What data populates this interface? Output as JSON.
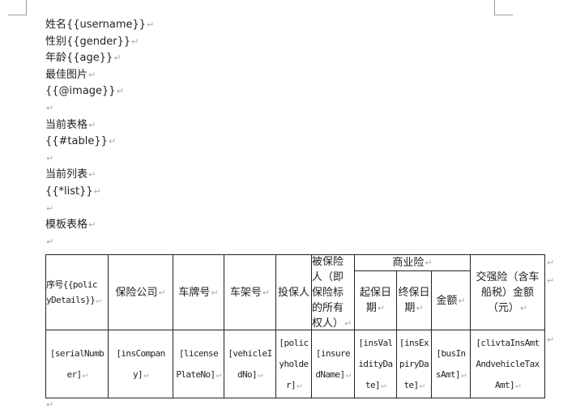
{
  "paragraphs": [
    "姓名{{username}}",
    "性别{{gender}}",
    "年龄{{age}}",
    "最佳图片",
    "{{@image}}",
    "",
    "当前表格",
    "{{#table}}",
    "",
    "当前列表",
    "{{*list}}",
    "",
    "模板表格",
    ""
  ],
  "table": {
    "header": {
      "col0": [
        "序号{{polic",
        "yDetails}}"
      ],
      "col1": [
        "保险公司"
      ],
      "col2": [
        "车牌号"
      ],
      "col3": [
        "车架号"
      ],
      "col4": [
        "投保人"
      ],
      "col5": [
        "被保险",
        "人（即",
        "保险标",
        "的所有",
        "权人）"
      ],
      "group": "商业险",
      "col6": [
        "起保日",
        "期"
      ],
      "col7": [
        "终保日",
        "期"
      ],
      "col8": [
        "金额"
      ],
      "col9": [
        "交强险（含车",
        "船税）金额",
        "（元）"
      ]
    },
    "row": {
      "col0": [
        "[serialNumb",
        "er]"
      ],
      "col1": [
        "[insCompan",
        "y]"
      ],
      "col2": [
        "[license",
        "PlateNo]"
      ],
      "col3": [
        "[vehicleI",
        "dNo]"
      ],
      "col4": [
        "[polic",
        "yholde",
        "r]"
      ],
      "col5": [
        "[insure",
        "dName]"
      ],
      "col6": [
        "[insVal",
        "idityDa",
        "te]"
      ],
      "col7": [
        "[insEx",
        "piryDa",
        "te]"
      ],
      "col8": [
        "[busIn",
        "sAmt]"
      ],
      "col9": [
        "[clivtaInsAmt",
        "AndvehicleTax",
        "Amt]"
      ]
    }
  }
}
